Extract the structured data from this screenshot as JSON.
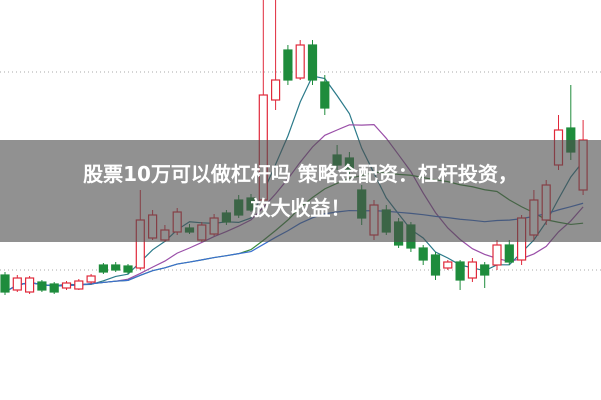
{
  "headline": {
    "line1": "股票10万可以做杠杆吗 策略金配资：杠杆投资，",
    "line2": "放大收益！"
  },
  "colors": {
    "up": "#e0283a",
    "down": "#1e8c3c",
    "ma_short": "#2b7a8a",
    "ma_mid": "#9a4fa8",
    "ma_long": "#3a8a3a",
    "ma_longest": "#3a6fd0",
    "gridline": "#aaaaaa",
    "banner": "rgba(78,78,78,0.62)"
  },
  "chart_data": {
    "type": "candlestick",
    "gridlines": "dotted horizontal",
    "moving_averages": [
      5,
      10,
      20,
      40
    ],
    "candles": [
      [
        12.5,
        10.8,
        12.8,
        10.5
      ],
      [
        11.0,
        12.2,
        12.5,
        10.8
      ],
      [
        10.8,
        12.2,
        12.4,
        10.6
      ],
      [
        11.8,
        11.0,
        12.0,
        10.8
      ],
      [
        11.6,
        10.8,
        11.8,
        10.6
      ],
      [
        11.2,
        11.7,
        11.9,
        11.0
      ],
      [
        11.1,
        11.9,
        12.1,
        11.0
      ],
      [
        11.8,
        12.4,
        12.6,
        11.6
      ],
      [
        13.5,
        12.8,
        13.7,
        12.6
      ],
      [
        13.5,
        13.0,
        13.8,
        12.8
      ],
      [
        13.4,
        12.8,
        13.6,
        12.6
      ],
      [
        13.2,
        18.0,
        21.0,
        13.0
      ],
      [
        16.2,
        18.5,
        19.0,
        16.0
      ],
      [
        16.0,
        17.0,
        17.5,
        15.8
      ],
      [
        16.8,
        18.8,
        19.2,
        16.5
      ],
      [
        17.2,
        16.8,
        17.6,
        16.6
      ],
      [
        16.0,
        17.5,
        17.8,
        15.8
      ],
      [
        16.6,
        18.2,
        18.6,
        16.4
      ],
      [
        18.7,
        17.8,
        19.0,
        17.5
      ],
      [
        20.0,
        18.5,
        20.5,
        18.2
      ],
      [
        20.2,
        19.0,
        20.6,
        18.8
      ],
      [
        20.0,
        30.5,
        40.0,
        19.5
      ],
      [
        30.0,
        32.0,
        40.0,
        29.0
      ],
      [
        35.0,
        32.0,
        35.5,
        31.5
      ],
      [
        32.2,
        35.5,
        36.0,
        32.0
      ],
      [
        35.5,
        32.0,
        36.0,
        31.5
      ],
      [
        31.8,
        29.2,
        32.5,
        28.5
      ],
      [
        24.5,
        23.5,
        25.5,
        23.0
      ],
      [
        24.2,
        23.0,
        24.8,
        22.5
      ],
      [
        21.0,
        18.2,
        21.5,
        17.5
      ],
      [
        16.5,
        19.5,
        20.0,
        16.0
      ],
      [
        19.0,
        16.8,
        19.5,
        16.5
      ],
      [
        17.8,
        15.5,
        18.2,
        15.2
      ],
      [
        17.5,
        15.2,
        17.8,
        14.8
      ],
      [
        15.2,
        14.0,
        15.5,
        13.5
      ],
      [
        14.5,
        12.5,
        14.8,
        12.0
      ],
      [
        13.2,
        13.8,
        14.0,
        13.0
      ],
      [
        13.8,
        12.0,
        14.0,
        11.0
      ],
      [
        12.2,
        13.8,
        14.2,
        11.8
      ],
      [
        13.5,
        12.5,
        13.8,
        11.2
      ],
      [
        13.5,
        15.5,
        16.0,
        13.0
      ],
      [
        15.5,
        13.8,
        16.0,
        13.5
      ],
      [
        14.0,
        18.2,
        18.5,
        13.5
      ],
      [
        16.5,
        20.0,
        21.0,
        16.0
      ],
      [
        18.0,
        21.5,
        22.0,
        17.5
      ],
      [
        23.5,
        27.0,
        28.5,
        23.0
      ],
      [
        27.2,
        24.8,
        31.5,
        24.0
      ],
      [
        21.0,
        26.0,
        28.0,
        20.5
      ]
    ]
  }
}
